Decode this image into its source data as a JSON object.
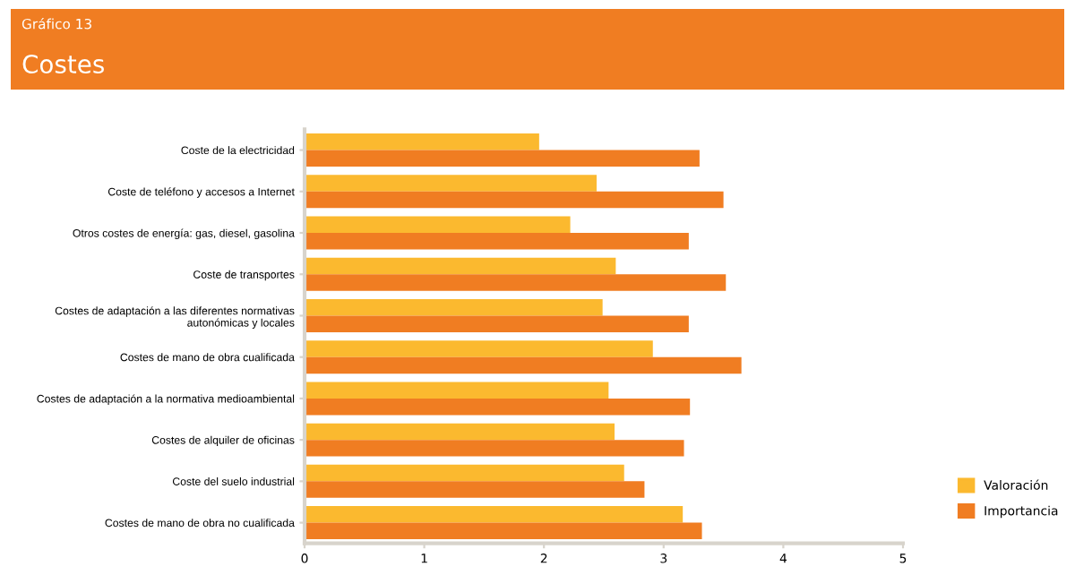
{
  "chart_data": {
    "type": "bar",
    "orientation": "horizontal",
    "subtitle": "Gráfico 13",
    "title": "Costes",
    "categories": [
      "Coste de la electricidad",
      "Coste de teléfono y accesos a Internet",
      "Otros costes de energía: gas, diesel, gasolina",
      "Coste de transportes",
      "Costes de adaptación a las diferentes normativas\nautonómicas y locales",
      "Costes de mano de obra cualificada",
      "Costes de adaptación a la normativa medioambiental",
      "Costes de alquiler de oficinas",
      "Coste del suelo industrial",
      "Costes de mano de obra no cualificada"
    ],
    "series": [
      {
        "name": "Valoración",
        "color": "#fbb92f",
        "values": [
          1.96,
          2.44,
          2.22,
          2.6,
          2.49,
          2.91,
          2.54,
          2.59,
          2.67,
          3.16
        ]
      },
      {
        "name": "Importancia",
        "color": "#f07d22",
        "values": [
          3.3,
          3.5,
          3.21,
          3.52,
          3.21,
          3.65,
          3.22,
          3.17,
          2.84,
          3.32
        ]
      }
    ],
    "xlim": [
      0,
      5
    ],
    "xticks": [
      0,
      1,
      2,
      3,
      4,
      5
    ],
    "grid": false,
    "legend": "bottom right"
  }
}
